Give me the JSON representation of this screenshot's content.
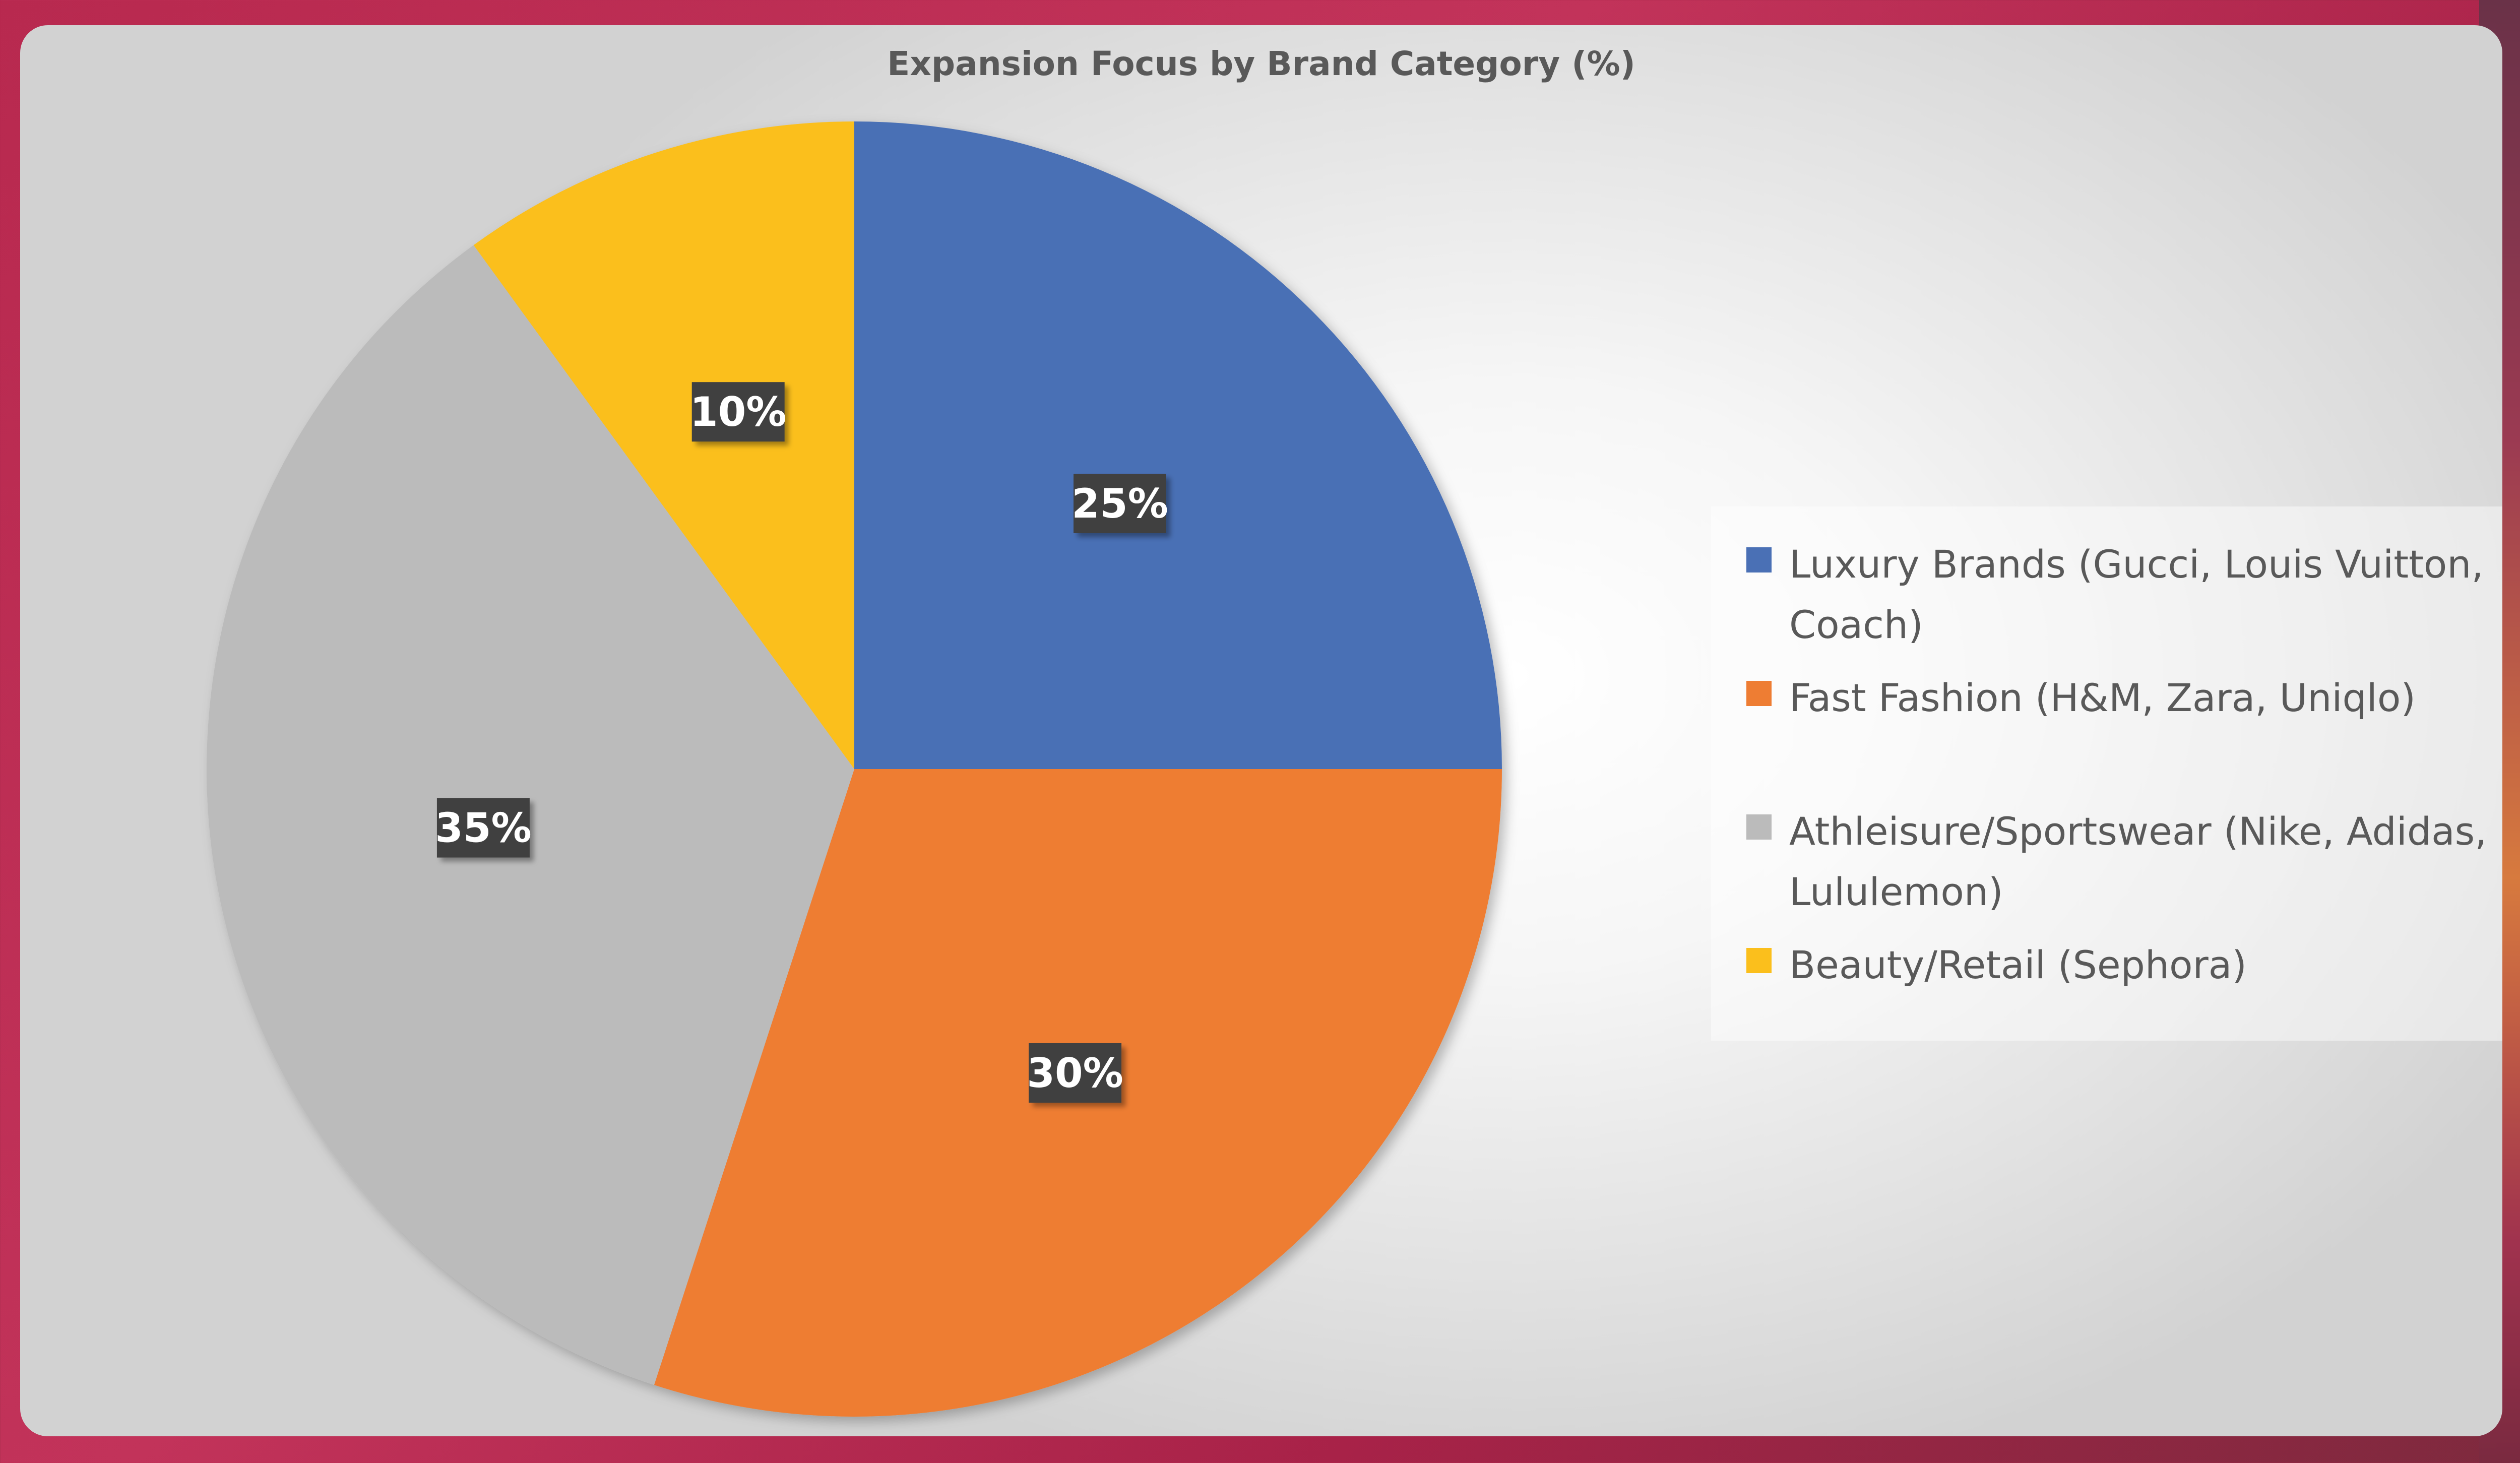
{
  "chart_data": {
    "type": "pie",
    "title": "Expansion Focus by Brand Category (%)",
    "categories": [
      "Luxury Brands (Gucci, Louis Vuitton, Coach)",
      "Fast Fashion (H&M, Zara, Uniqlo)",
      "Athleisure/Sportswear (Nike, Adidas, Lululemon)",
      "Beauty/Retail (Sephora)"
    ],
    "values": [
      25,
      30,
      35,
      10
    ],
    "data_labels": [
      "25%",
      "30%",
      "35%",
      "10%"
    ],
    "colors": [
      "#4a70b5",
      "#ee7d33",
      "#bbbbbb",
      "#fbbf1c"
    ],
    "legend_position": "right"
  }
}
